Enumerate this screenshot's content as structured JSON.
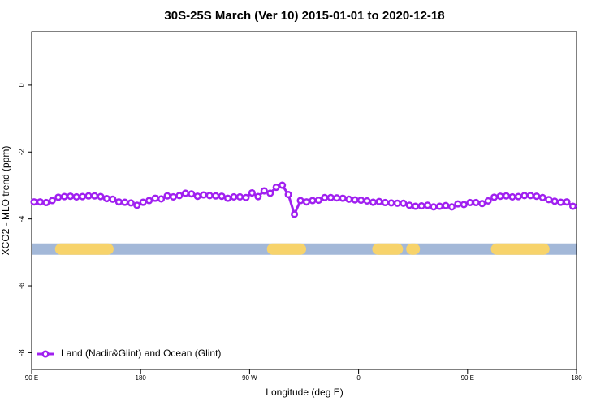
{
  "chart_data": {
    "type": "line",
    "title": "30S-25S March (Ver 10)   2015-01-01 to 2020-12-18",
    "x_label": "Longitude (deg E)",
    "y_label": "XCO2 - MLO trend (ppm)",
    "xlim": [
      90,
      540
    ],
    "ylim": [
      -8.5,
      1.6
    ],
    "xticks": [
      {
        "value": 90,
        "label": "90 E"
      },
      180,
      {
        "value": 270,
        "label": "90 W"
      },
      {
        "value": 360,
        "label": "0"
      },
      {
        "value": 450,
        "label": "90 E"
      },
      {
        "value": 540,
        "label": "180"
      }
    ],
    "yticks": [
      0,
      -2,
      -4,
      -6,
      -8
    ],
    "legend": "bottom-left",
    "series": [
      {
        "name": "Land (Nadir&Glint) and Ocean (Glint)",
        "color": "#a020f0",
        "x": [
          92,
          97,
          102,
          107,
          112,
          117,
          122,
          127,
          132,
          137,
          142,
          147,
          152,
          157,
          162,
          167,
          172,
          177,
          182,
          187,
          192,
          197,
          202,
          207,
          212,
          217,
          222,
          227,
          232,
          237,
          242,
          247,
          252,
          257,
          262,
          267,
          272,
          277,
          282,
          287,
          292,
          297,
          302,
          307,
          312,
          317,
          322,
          327,
          332,
          337,
          342,
          347,
          352,
          357,
          362,
          367,
          372,
          377,
          382,
          387,
          392,
          397,
          402,
          407,
          412,
          417,
          422,
          427,
          432,
          437,
          442,
          447,
          452,
          457,
          462,
          467,
          472,
          477,
          482,
          487,
          492,
          497,
          502,
          507,
          512,
          517,
          522,
          527,
          532,
          537
        ],
        "values": [
          -3.49,
          -3.49,
          -3.51,
          -3.45,
          -3.35,
          -3.33,
          -3.32,
          -3.34,
          -3.33,
          -3.31,
          -3.31,
          -3.33,
          -3.39,
          -3.41,
          -3.49,
          -3.5,
          -3.52,
          -3.59,
          -3.5,
          -3.45,
          -3.38,
          -3.4,
          -3.31,
          -3.34,
          -3.3,
          -3.23,
          -3.25,
          -3.32,
          -3.28,
          -3.3,
          -3.31,
          -3.32,
          -3.38,
          -3.34,
          -3.34,
          -3.36,
          -3.22,
          -3.33,
          -3.16,
          -3.23,
          -3.05,
          -2.99,
          -3.27,
          -3.86,
          -3.45,
          -3.49,
          -3.45,
          -3.44,
          -3.36,
          -3.36,
          -3.37,
          -3.38,
          -3.41,
          -3.43,
          -3.44,
          -3.46,
          -3.5,
          -3.48,
          -3.51,
          -3.52,
          -3.53,
          -3.53,
          -3.59,
          -3.62,
          -3.61,
          -3.59,
          -3.64,
          -3.62,
          -3.6,
          -3.64,
          -3.55,
          -3.57,
          -3.51,
          -3.51,
          -3.54,
          -3.46,
          -3.35,
          -3.32,
          -3.31,
          -3.34,
          -3.33,
          -3.3,
          -3.3,
          -3.32,
          -3.36,
          -3.42,
          -3.47,
          -3.5,
          -3.49,
          -3.62
        ]
      }
    ],
    "surface_band": {
      "y": -4.9,
      "ocean_color": "#a3b8d8",
      "land_color": "#f7d36b",
      "land_segments": [
        [
          114,
          153
        ],
        [
          289,
          312
        ],
        [
          376,
          392
        ],
        [
          404,
          406
        ],
        [
          474,
          513
        ]
      ]
    }
  }
}
